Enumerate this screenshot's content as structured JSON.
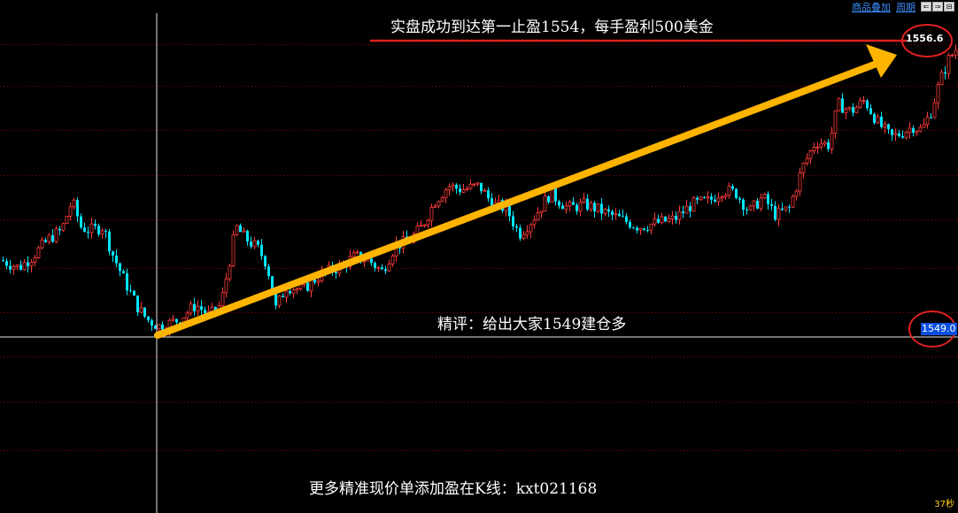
{
  "toolbar": {
    "overlay_label": "商品叠加",
    "period_label": "周期",
    "nav_buttons": [
      "⇐",
      "⇒",
      "⊟"
    ]
  },
  "annotations": {
    "headline": "实盘成功到达第一止盈1554，每手盈利500美金",
    "comment": "精评：给出大家1549建仓多",
    "promo": "更多精准现价单添加盈在K线：kxt021168"
  },
  "price_labels": {
    "top": "1556.6",
    "current": "1549.0"
  },
  "timer": "37秒",
  "colors": {
    "background": "#000000",
    "up_candle": "#ff3b3b",
    "down_candle": "#00e5ff",
    "grid": "#8b0000",
    "arrow": "#ffb400",
    "target_line": "#e02020",
    "circle": "#e02020"
  },
  "chart_data": {
    "type": "candlestick",
    "title": "",
    "ylim": [
      1544.0,
      1557.8
    ],
    "entry_price": 1549.0,
    "target_price": 1556.6,
    "grid_levels": [
      1556.6,
      1555.5,
      1554.3,
      1553.1,
      1551.9,
      1550.6,
      1549.4,
      1548.2,
      1547.0,
      1545.7
    ],
    "close_path": [
      [
        0,
        1550.8
      ],
      [
        20,
        1550.6
      ],
      [
        35,
        1550.9
      ],
      [
        55,
        1551.4
      ],
      [
        68,
        1551.6
      ],
      [
        80,
        1552.4
      ],
      [
        90,
        1551.7
      ],
      [
        100,
        1551.6
      ],
      [
        115,
        1551.7
      ],
      [
        125,
        1551.0
      ],
      [
        140,
        1550.2
      ],
      [
        155,
        1549.5
      ],
      [
        165,
        1549.2
      ],
      [
        180,
        1549.0
      ],
      [
        200,
        1549.2
      ],
      [
        220,
        1549.6
      ],
      [
        235,
        1549.3
      ],
      [
        248,
        1549.6
      ],
      [
        258,
        1550.8
      ],
      [
        265,
        1551.7
      ],
      [
        275,
        1551.4
      ],
      [
        290,
        1551.1
      ],
      [
        300,
        1550.7
      ],
      [
        310,
        1549.5
      ],
      [
        322,
        1550.1
      ],
      [
        340,
        1550.0
      ],
      [
        360,
        1550.4
      ],
      [
        380,
        1550.6
      ],
      [
        400,
        1550.9
      ],
      [
        415,
        1550.8
      ],
      [
        430,
        1550.5
      ],
      [
        445,
        1551.2
      ],
      [
        460,
        1551.3
      ],
      [
        475,
        1551.7
      ],
      [
        490,
        1552.4
      ],
      [
        505,
        1552.8
      ],
      [
        520,
        1552.7
      ],
      [
        540,
        1552.8
      ],
      [
        555,
        1552.3
      ],
      [
        570,
        1552.2
      ],
      [
        585,
        1551.5
      ],
      [
        600,
        1551.9
      ],
      [
        620,
        1552.6
      ],
      [
        640,
        1552.2
      ],
      [
        660,
        1552.3
      ],
      [
        680,
        1552.1
      ],
      [
        700,
        1551.9
      ],
      [
        720,
        1551.7
      ],
      [
        740,
        1551.8
      ],
      [
        760,
        1551.9
      ],
      [
        780,
        1552.3
      ],
      [
        800,
        1552.4
      ],
      [
        815,
        1552.7
      ],
      [
        830,
        1552.6
      ],
      [
        845,
        1552.1
      ],
      [
        860,
        1552.5
      ],
      [
        875,
        1552.0
      ],
      [
        890,
        1552.2
      ],
      [
        905,
        1553.3
      ],
      [
        920,
        1554.0
      ],
      [
        935,
        1553.9
      ],
      [
        945,
        1555.0
      ],
      [
        960,
        1554.8
      ],
      [
        975,
        1555.1
      ],
      [
        990,
        1554.5
      ],
      [
        1005,
        1554.1
      ],
      [
        1015,
        1554.2
      ],
      [
        1030,
        1554.4
      ],
      [
        1040,
        1554.3
      ],
      [
        1050,
        1554.8
      ],
      [
        1060,
        1555.6
      ],
      [
        1070,
        1556.2
      ],
      [
        1082,
        1556.6
      ]
    ]
  }
}
